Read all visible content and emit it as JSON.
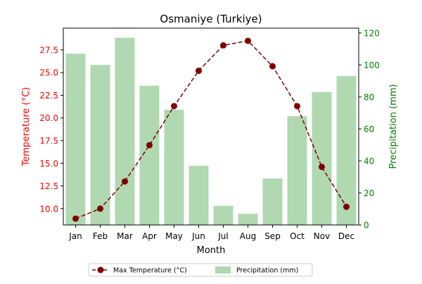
{
  "chart_data": {
    "type": "bar+line",
    "title": "Osmaniye (Turkiye)",
    "xlabel": "Month",
    "categories": [
      "Jan",
      "Feb",
      "Mar",
      "Apr",
      "May",
      "Jun",
      "Jul",
      "Aug",
      "Sep",
      "Oct",
      "Nov",
      "Dec"
    ],
    "y_left": {
      "label": "Temperature (°C)",
      "color": "#ff0000",
      "range": [
        8.2,
        29.9
      ],
      "ticks": [
        "10.0",
        "12.5",
        "15.0",
        "17.5",
        "20.0",
        "22.5",
        "25.0",
        "27.5"
      ]
    },
    "y_right": {
      "label": "Precipitation (mm)",
      "color": "#008000",
      "range": [
        0,
        123
      ],
      "ticks": [
        "0",
        "20",
        "40",
        "60",
        "80",
        "100",
        "120"
      ]
    },
    "series": [
      {
        "name": "Max Temperature (°C)",
        "type": "line",
        "axis": "left",
        "color": "#800000",
        "line_style": "dashed",
        "marker": "circle",
        "values": [
          8.9,
          10.0,
          13.0,
          17.0,
          21.3,
          25.2,
          28.0,
          28.5,
          25.7,
          21.3,
          14.6,
          10.2
        ]
      },
      {
        "name": "Precipitation (mm)",
        "type": "bar",
        "axis": "right",
        "color": "#b0d8b1",
        "values": [
          107,
          100,
          117,
          87,
          72,
          37,
          12,
          7,
          29,
          68,
          83,
          93
        ]
      }
    ],
    "legend": {
      "placement": "bottom-center"
    }
  }
}
